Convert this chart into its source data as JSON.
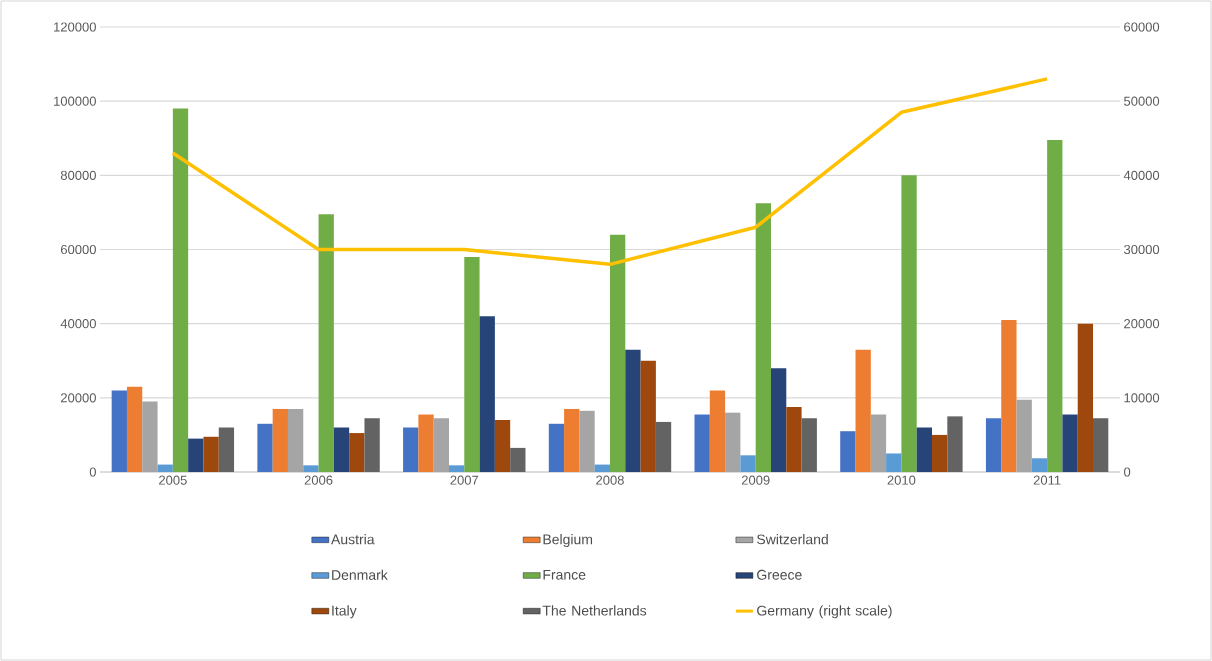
{
  "chart_data": {
    "type": "bar",
    "categories": [
      "2005",
      "2006",
      "2007",
      "2008",
      "2009",
      "2010",
      "2011"
    ],
    "series": [
      {
        "name": "Austria",
        "color": "#4472c4",
        "values": [
          22000,
          13000,
          12000,
          13000,
          15500,
          11000,
          14500
        ]
      },
      {
        "name": "Belgium",
        "color": "#ed7d31",
        "values": [
          23000,
          17000,
          15500,
          17000,
          22000,
          33000,
          41000
        ]
      },
      {
        "name": "Switzerland",
        "color": "#a5a5a5",
        "values": [
          19000,
          17000,
          14500,
          16500,
          16000,
          15500,
          19500
        ]
      },
      {
        "name": "Denmark",
        "color": "#5b9bd5",
        "values": [
          2000,
          1800,
          1800,
          2000,
          4500,
          5000,
          3700
        ]
      },
      {
        "name": "France",
        "color": "#70ad47",
        "values": [
          98000,
          69500,
          58000,
          64000,
          72500,
          80000,
          89500
        ]
      },
      {
        "name": "Greece",
        "color": "#264478",
        "values": [
          9000,
          12000,
          42000,
          33000,
          28000,
          12000,
          15500
        ]
      },
      {
        "name": "Italy",
        "color": "#9e480e",
        "values": [
          9500,
          10500,
          14000,
          30000,
          17500,
          10000,
          40000
        ]
      },
      {
        "name": "The Netherlands",
        "color": "#636363",
        "values": [
          12000,
          14500,
          6500,
          13500,
          14500,
          15000,
          14500
        ]
      },
      {
        "name": "Germany (right scale)",
        "color": "#ffc000",
        "type": "line",
        "axis": "y2",
        "values": [
          43000,
          30000,
          30000,
          28000,
          33000,
          48500,
          53000
        ]
      }
    ],
    "ylim": [
      0,
      120000
    ],
    "yticks": [
      0,
      20000,
      40000,
      60000,
      80000,
      100000,
      120000
    ],
    "y2lim": [
      0,
      60000
    ],
    "y2ticks": [
      0,
      10000,
      20000,
      30000,
      40000,
      50000,
      60000
    ],
    "grid": "y",
    "legend": "bottom",
    "line_style": "solid"
  }
}
